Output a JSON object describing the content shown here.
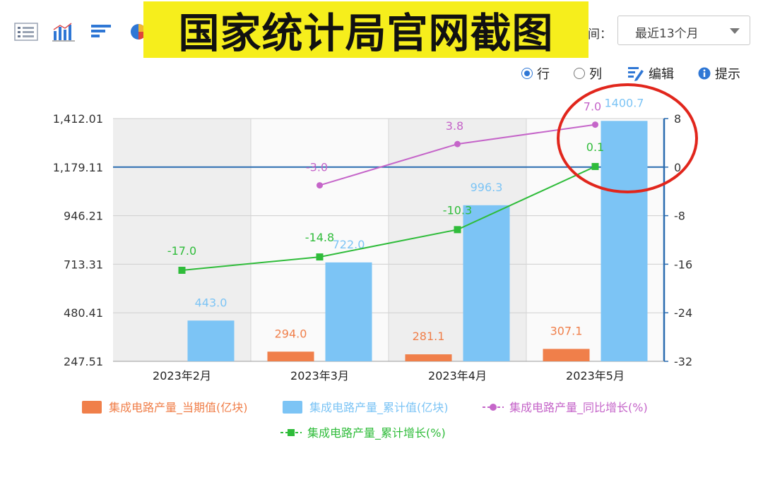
{
  "banner": {
    "text": "国家统计局官网截图"
  },
  "toolbar": {
    "period_label": "间：",
    "period_value": "最近13个月"
  },
  "options": {
    "row_label": "行",
    "col_label": "列",
    "edit_label": "编辑",
    "hint_label": "提示"
  },
  "colors": {
    "bar_current": "#f07f4a",
    "bar_cumulative": "#7cc4f5",
    "line_yoy": "#c565c9",
    "line_cumulative_growth": "#2fbc3a",
    "annotation_circle": "#e1261c",
    "axis_blue": "#2b6cb0"
  },
  "chart_data": {
    "type": "bar",
    "categories": [
      "2023年2月",
      "2023年3月",
      "2023年4月",
      "2023年5月"
    ],
    "y_left": {
      "ticks": [
        "1,412.01",
        "1,179.11",
        "946.21",
        "713.31",
        "480.41",
        "247.51"
      ],
      "range": [
        247.51,
        1412.01
      ]
    },
    "y_right": {
      "ticks": [
        "8",
        "0",
        "-8",
        "-16",
        "-24",
        "-32"
      ],
      "range": [
        -32,
        8
      ]
    },
    "series": [
      {
        "name": "集成电路产量_当期值(亿块)",
        "type": "bar",
        "axis": "left",
        "values": [
          null,
          294.0,
          281.1,
          307.1
        ],
        "labels": [
          "",
          "294.0",
          "281.1",
          "307.1"
        ]
      },
      {
        "name": "集成电路产量_累计值(亿块)",
        "type": "bar",
        "axis": "left",
        "values": [
          443.0,
          722.0,
          996.3,
          1400.7
        ],
        "labels": [
          "443.0",
          "722.0",
          "996.3",
          "1400.7"
        ]
      },
      {
        "name": "集成电路产量_同比增长(%)",
        "type": "line",
        "axis": "right",
        "values": [
          null,
          -3.0,
          3.8,
          7.0
        ],
        "labels": [
          "",
          "-3.0",
          "3.8",
          "7.0"
        ]
      },
      {
        "name": "集成电路产量_累计增长(%)",
        "type": "line",
        "axis": "right",
        "values": [
          -17.0,
          -14.8,
          -10.3,
          0.1
        ],
        "labels": [
          "-17.0",
          "-14.8",
          "-10.3",
          "0.1"
        ]
      }
    ],
    "grid": true,
    "legend_position": "bottom"
  }
}
